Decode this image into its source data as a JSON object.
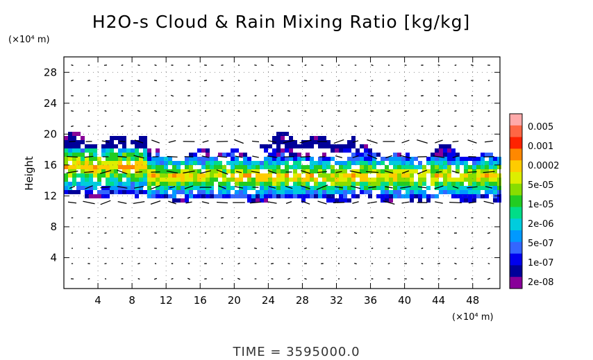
{
  "chart_data": {
    "type": "heatmap",
    "title": "H2O-s Cloud & Rain Mixing Ratio [kg/kg]",
    "ylabel": "Height",
    "x_unit": "(×10⁴ m)",
    "y_unit": "(×10⁴ m)",
    "xlim": [
      0,
      51.2
    ],
    "ylim": [
      0,
      30
    ],
    "x_ticks": [
      4,
      8,
      12,
      16,
      20,
      24,
      28,
      32,
      36,
      40,
      44,
      48
    ],
    "y_ticks": [
      4,
      8,
      12,
      16,
      20,
      24,
      28
    ],
    "grid": "dotted",
    "colorbar": {
      "labels": [
        "0.005",
        "0.001",
        "0.0002",
        "5e-05",
        "1e-05",
        "2e-06",
        "5e-07",
        "1e-07",
        "2e-08"
      ],
      "colors": [
        "#ffaaaa",
        "#ff6644",
        "#ff2200",
        "#ff8800",
        "#ffcc00",
        "#ddee00",
        "#88dd00",
        "#22cc22",
        "#00dd88",
        "#00ccdd",
        "#0099ff",
        "#3366ff",
        "#0000ee",
        "#000099",
        "#880099"
      ]
    },
    "cloud_bands": [
      {
        "x": [
          0,
          10
        ],
        "y": [
          12,
          19.5
        ]
      },
      {
        "x": [
          10,
          51.2
        ],
        "y": [
          11.5,
          17.5
        ]
      },
      {
        "x": [
          23,
          34
        ],
        "y": [
          18,
          19.5
        ]
      },
      {
        "x": [
          45,
          49
        ],
        "y": [
          11.5,
          13
        ]
      }
    ],
    "time_label": "TIME = 3595000.0"
  }
}
